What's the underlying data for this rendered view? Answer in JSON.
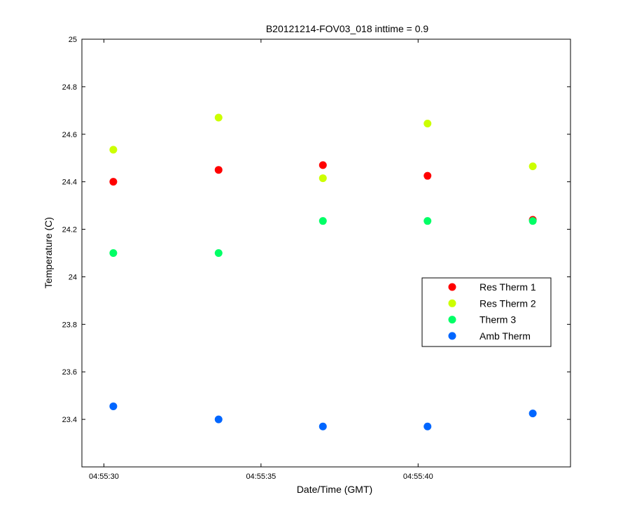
{
  "chart_data": {
    "type": "scatter",
    "title": "B20121214-FOV03_018 inttime = 0.9",
    "xlabel": "Date/Time (GMT)",
    "ylabel": "Temperature (C)",
    "x_tick_labels": [
      "04:55:30",
      "04:55:35",
      "04:55:40"
    ],
    "x_tick_seconds": [
      30,
      35,
      40
    ],
    "xlim_seconds": [
      29.3,
      44.85
    ],
    "y_ticks": [
      "23.4",
      "23.6",
      "23.8",
      "24",
      "24.2",
      "24.4",
      "24.6",
      "24.8",
      "25"
    ],
    "ylim": [
      23.2,
      25
    ],
    "grid": false,
    "legend_position": "right",
    "x": [
      30.3,
      33.65,
      36.97,
      40.3,
      43.65
    ],
    "series": [
      {
        "name": "Res Therm 1",
        "color": "#ff0000",
        "values": [
          24.4,
          24.45,
          24.47,
          24.425,
          24.24
        ]
      },
      {
        "name": "Res Therm 2",
        "color": "#ccff00",
        "values": [
          24.535,
          24.67,
          24.415,
          24.645,
          24.465
        ]
      },
      {
        "name": "Therm 3",
        "color": "#00ff66",
        "values": [
          24.1,
          24.1,
          24.235,
          24.235,
          24.235
        ]
      },
      {
        "name": "Amb Therm",
        "color": "#0066ff",
        "values": [
          23.455,
          23.4,
          23.37,
          23.37,
          23.425
        ]
      }
    ]
  }
}
